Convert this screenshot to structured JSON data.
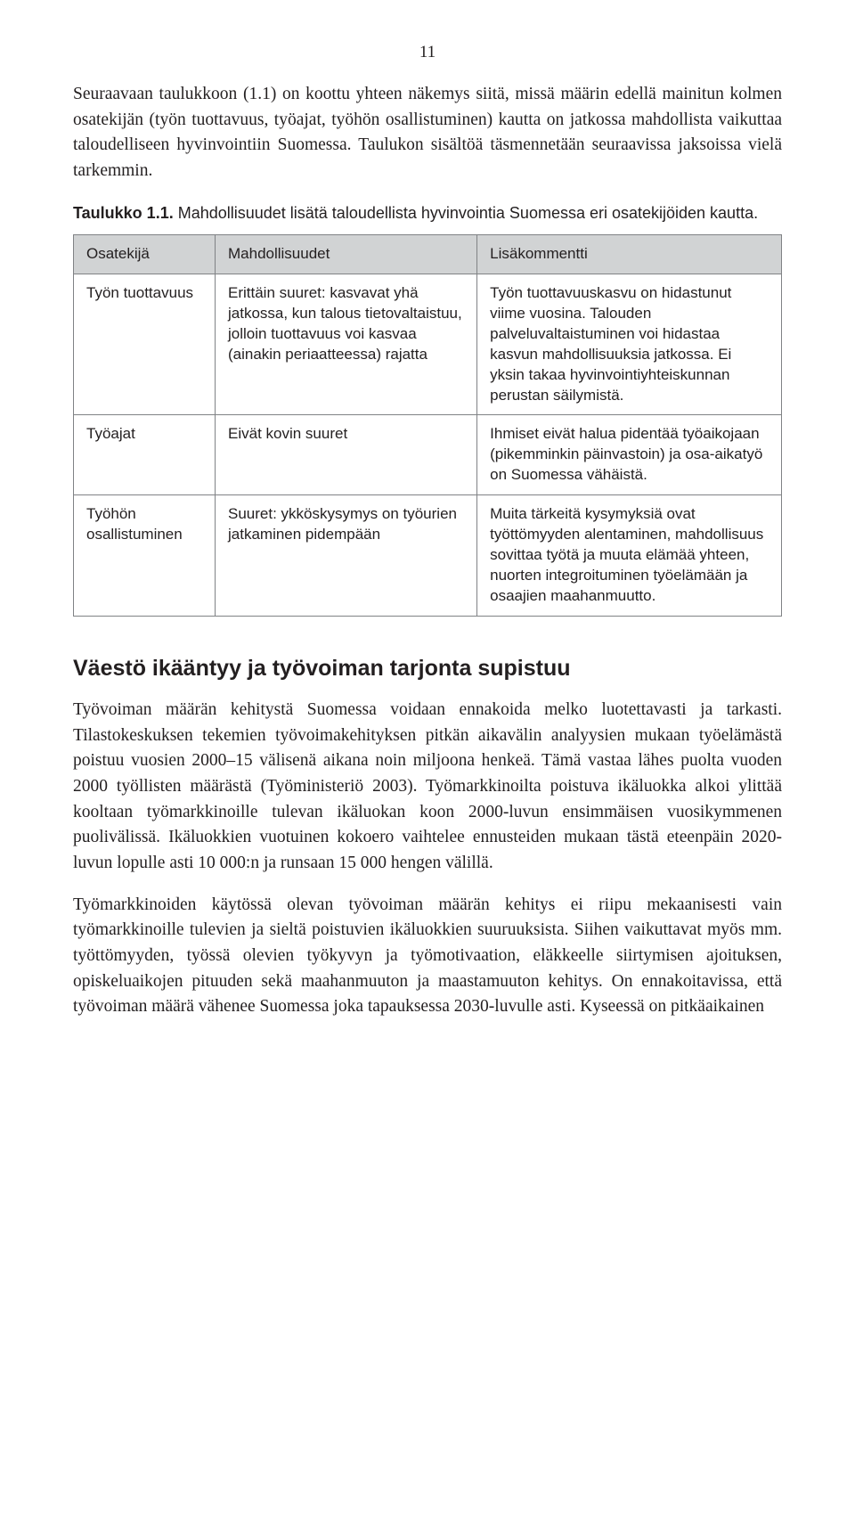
{
  "page_number": "11",
  "intro_paragraph": "Seuraavaan taulukkoon (1.1) on koottu yhteen näkemys siitä, missä määrin edellä mainitun kolmen osatekijän (työn tuottavuus, työajat, työhön osallistuminen) kautta on jatkossa mahdollista vaikuttaa taloudelliseen hyvinvointiin Suomessa. Taulukon sisältöä täsmennetään seuraavissa jaksoissa vielä tarkemmin.",
  "table_caption_label": "Taulukko 1.1.",
  "table_caption_rest": " Mahdollisuudet lisätä taloudellista hyvinvointia Suomessa eri osatekijöiden kautta.",
  "table": {
    "header_bg": "#d1d3d4",
    "border_color": "#808285",
    "columns": [
      "Osatekijä",
      "Mahdollisuudet",
      "Lisäkommentti"
    ],
    "rows": [
      {
        "factor": "Työn tuottavuus",
        "possibility": "Erittäin suuret: kasvavat yhä jatkossa, kun talous tietovaltaistuu, jolloin tuottavuus voi kasvaa (ainakin periaatteessa) rajatta",
        "comment": "Työn tuottavuuskasvu on hidastunut viime vuosina. Talouden palveluvaltaistuminen voi hidastaa kasvun mahdollisuuksia jatkossa. Ei yksin takaa hyvinvointiyhteiskunnan perustan säilymistä."
      },
      {
        "factor": "Työajat",
        "possibility": "Eivät kovin suuret",
        "comment": "Ihmiset eivät halua pidentää työaikojaan (pikemminkin päinvastoin) ja osa-aikatyö on Suomessa vähäistä."
      },
      {
        "factor": "Työhön osallistuminen",
        "possibility": "Suuret: ykköskysymys on työurien jatkaminen pidempään",
        "comment": "Muita tärkeitä kysymyksiä ovat työttömyyden alentaminen, mahdollisuus sovittaa työtä ja muuta elämää yhteen, nuorten integroituminen työelämään ja osaajien maahanmuutto."
      }
    ]
  },
  "section_heading": "Väestö ikääntyy ja työvoiman tarjonta supistuu",
  "section_para_1": "Työvoiman määrän kehitystä Suomessa voidaan ennakoida melko luotettavasti ja tarkasti. Tilastokeskuksen tekemien työvoimakehityksen pitkän aikavälin analyysien mukaan työelämästä poistuu vuosien 2000–15 välisenä aikana noin miljoona henkeä. Tämä vastaa lähes puolta vuoden 2000 työllisten määrästä (Työministeriö 2003). Työmarkkinoilta poistuva ikäluokka alkoi ylittää kooltaan työmarkkinoille tulevan ikäluokan koon 2000-luvun ensimmäisen vuosikymmenen puolivälissä. Ikäluokkien vuotuinen kokoero vaihtelee ennusteiden mukaan tästä eteenpäin 2020-luvun lopulle asti 10 000:n ja runsaan 15 000 hengen välillä.",
  "section_para_2": "Työmarkkinoiden käytössä olevan työvoiman määrän kehitys ei riipu mekaanisesti vain työmarkkinoille tulevien ja sieltä poistuvien ikäluokkien suuruuksista. Siihen vaikuttavat myös mm. työttömyyden, työssä olevien työkyvyn ja työmotivaation, eläkkeelle siirtymisen ajoituksen, opiskeluaikojen pituuden sekä maahanmuuton ja maastamuuton kehitys. On ennakoitavissa, että työvoiman määrä vähenee Suomessa joka tapauksessa 2030-luvulle asti. Kyseessä on pitkäaikainen"
}
